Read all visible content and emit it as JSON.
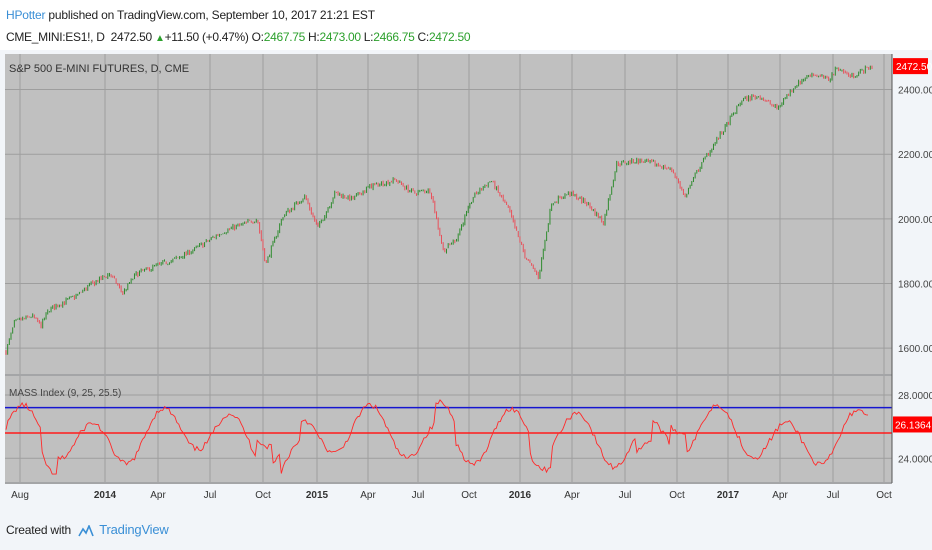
{
  "header": {
    "author": "HPotter",
    "published_text": " published on TradingView.com, September 10, 2017 21:21 EST"
  },
  "ohlc": {
    "symbol": "CME_MINI:ES1!, D",
    "last": "2472.50",
    "change": "+11.50 (+0.47%)",
    "o_label": "O:",
    "o_value": "2467.75",
    "h_label": "H:",
    "h_value": "2473.00",
    "l_label": "L:",
    "l_value": "2466.75",
    "c_label": "C:",
    "c_value": "2472.50"
  },
  "footer": {
    "created_with": "Created with",
    "brand": "TradingView"
  },
  "colors": {
    "plot_bg": "#c0c0c0",
    "grid": "#9e9e9e",
    "up": "#2e8b2e",
    "down": "#e8505a",
    "blue_line": "#1515d0",
    "red_line": "#ff1a1a",
    "label_red": "#ff0000"
  },
  "chart_data": [
    {
      "type": "candlestick",
      "title": "S&P 500 E-MINI FUTURES, D, CME",
      "ylim": [
        1520,
        2510
      ],
      "yticks": [
        "1600.00",
        "1800.00",
        "2000.00",
        "2200.00",
        "2400.00"
      ],
      "last_price_label": "2472.50",
      "last_price": 2472.5,
      "price_path": [
        [
          0,
          1590
        ],
        [
          0.01,
          1680
        ],
        [
          0.03,
          1700
        ],
        [
          0.04,
          1670
        ],
        [
          0.05,
          1720
        ],
        [
          0.08,
          1760
        ],
        [
          0.1,
          1800
        ],
        [
          0.12,
          1830
        ],
        [
          0.135,
          1770
        ],
        [
          0.15,
          1830
        ],
        [
          0.18,
          1860
        ],
        [
          0.2,
          1880
        ],
        [
          0.22,
          1910
        ],
        [
          0.25,
          1960
        ],
        [
          0.27,
          1980
        ],
        [
          0.29,
          2000
        ],
        [
          0.3,
          1860
        ],
        [
          0.32,
          2010
        ],
        [
          0.345,
          2070
        ],
        [
          0.36,
          1970
        ],
        [
          0.38,
          2080
        ],
        [
          0.4,
          2060
        ],
        [
          0.42,
          2100
        ],
        [
          0.45,
          2120
        ],
        [
          0.47,
          2080
        ],
        [
          0.49,
          2090
        ],
        [
          0.505,
          1900
        ],
        [
          0.52,
          1940
        ],
        [
          0.54,
          2070
        ],
        [
          0.56,
          2120
        ],
        [
          0.58,
          2030
        ],
        [
          0.6,
          1880
        ],
        [
          0.615,
          1820
        ],
        [
          0.63,
          2050
        ],
        [
          0.65,
          2080
        ],
        [
          0.67,
          2050
        ],
        [
          0.69,
          1990
        ],
        [
          0.705,
          2170
        ],
        [
          0.73,
          2180
        ],
        [
          0.75,
          2170
        ],
        [
          0.77,
          2150
        ],
        [
          0.785,
          2060
        ],
        [
          0.79,
          2110
        ],
        [
          0.81,
          2200
        ],
        [
          0.83,
          2280
        ],
        [
          0.85,
          2370
        ],
        [
          0.87,
          2380
        ],
        [
          0.89,
          2340
        ],
        [
          0.91,
          2410
        ],
        [
          0.93,
          2450
        ],
        [
          0.95,
          2430
        ],
        [
          0.96,
          2470
        ],
        [
          0.975,
          2440
        ],
        [
          1.0,
          2472
        ]
      ]
    },
    {
      "type": "line",
      "title": "MASS Index (9, 25, 25.5)",
      "ylim": [
        22.5,
        29.2
      ],
      "yticks": [
        "24.0000",
        "28.0000"
      ],
      "reference_lines": [
        {
          "value": 27.2,
          "color": "#1515d0"
        },
        {
          "value": 25.6,
          "color": "#ff1a1a"
        }
      ],
      "last_value_label": "26.1364",
      "last_value": 26.1364
    }
  ],
  "x_axis": {
    "labels": [
      {
        "text": "Aug",
        "bold": false
      },
      {
        "text": "2014",
        "bold": true
      },
      {
        "text": "Apr",
        "bold": false
      },
      {
        "text": "Jul",
        "bold": false
      },
      {
        "text": "Oct",
        "bold": false
      },
      {
        "text": "2015",
        "bold": true
      },
      {
        "text": "Apr",
        "bold": false
      },
      {
        "text": "Jul",
        "bold": false
      },
      {
        "text": "Oct",
        "bold": false
      },
      {
        "text": "2016",
        "bold": true
      },
      {
        "text": "Apr",
        "bold": false
      },
      {
        "text": "Jul",
        "bold": false
      },
      {
        "text": "Oct",
        "bold": false
      },
      {
        "text": "2017",
        "bold": true
      },
      {
        "text": "Apr",
        "bold": false
      },
      {
        "text": "Jul",
        "bold": false
      },
      {
        "text": "Oct",
        "bold": false
      }
    ]
  }
}
